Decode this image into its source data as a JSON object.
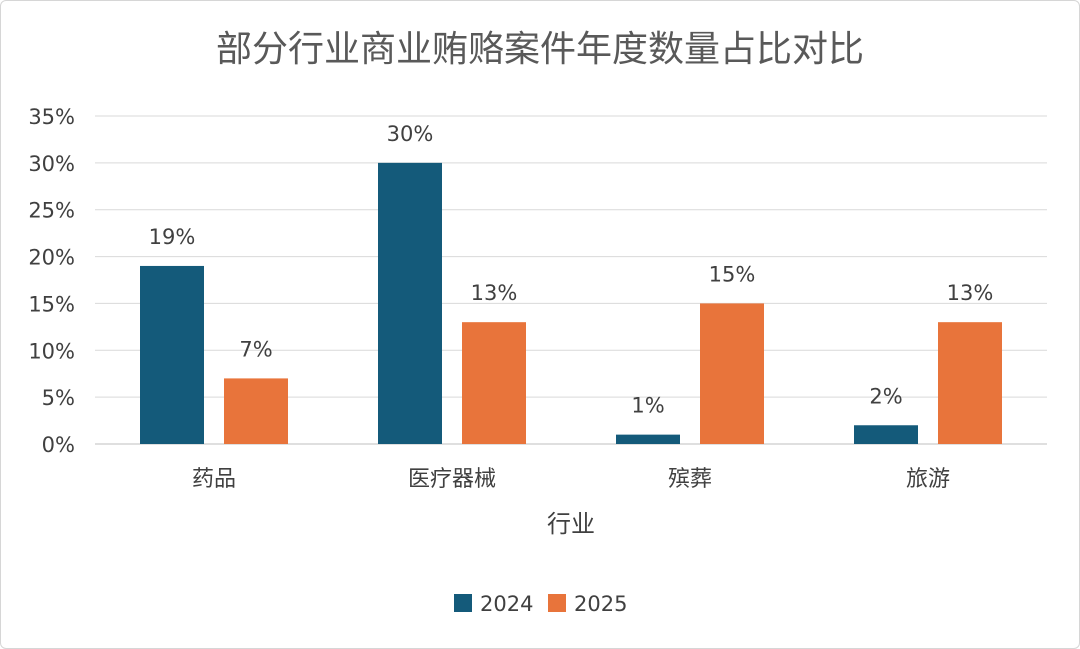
{
  "chart_data": {
    "type": "bar",
    "title": "部分行业商业贿赂案件年度数量占比对比",
    "xlabel": "行业",
    "ylabel": "",
    "categories": [
      "药品",
      "医疗器械",
      "殡葬",
      "旅游"
    ],
    "series": [
      {
        "name": "2024",
        "values": [
          19,
          30,
          1,
          2
        ],
        "labels": [
          "19%",
          "30%",
          "1%",
          "2%"
        ],
        "color": "#145a7a"
      },
      {
        "name": "2025",
        "values": [
          7,
          13,
          15,
          13
        ],
        "labels": [
          "7%",
          "13%",
          "15%",
          "13%"
        ],
        "color": "#e8743b"
      }
    ],
    "ylim": [
      0,
      35
    ],
    "yticks": [
      0,
      5,
      10,
      15,
      20,
      25,
      30,
      35
    ],
    "ytick_labels": [
      "0%",
      "5%",
      "10%",
      "15%",
      "20%",
      "25%",
      "30%",
      "35%"
    ],
    "grid": true,
    "legend": "bottom"
  }
}
